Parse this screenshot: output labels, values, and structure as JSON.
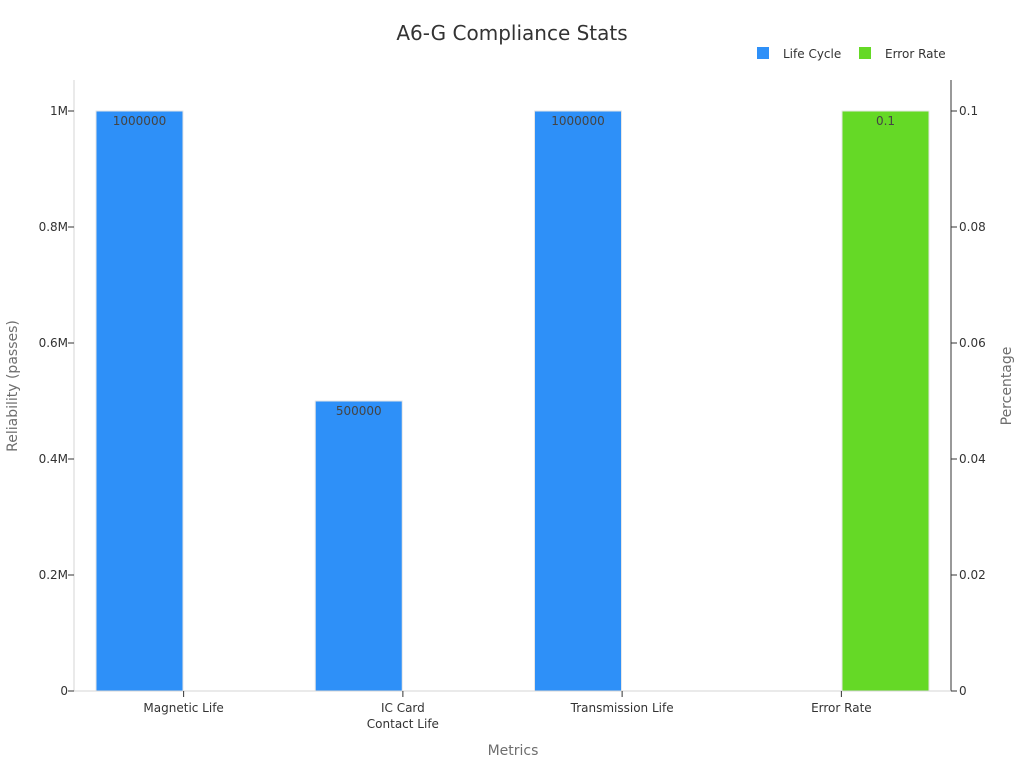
{
  "chart_data": {
    "type": "bar",
    "title": "A6-G Compliance Stats",
    "xlabel": "Metrics",
    "ylabel": "Reliability (passes)",
    "y2label": "Percentage",
    "categories": [
      [
        "Magnetic Life"
      ],
      [
        "IC Card",
        "Contact Life"
      ],
      [
        "Transmission Life"
      ],
      [
        "Error Rate"
      ]
    ],
    "series": [
      {
        "name": "Life Cycle",
        "axis": "left",
        "color": "#2e90f8",
        "values": [
          1000000,
          500000,
          1000000,
          null
        ],
        "labels": [
          "1000000",
          "500000",
          "1000000",
          null
        ]
      },
      {
        "name": "Error Rate",
        "axis": "right",
        "color": "#65d926",
        "values": [
          null,
          null,
          null,
          0.1
        ],
        "labels": [
          null,
          null,
          null,
          "0.1"
        ]
      }
    ],
    "ylim": [
      0,
      1000000
    ],
    "y2lim": [
      0,
      0.1
    ],
    "yticks": [
      {
        "value": 0,
        "label": "0"
      },
      {
        "value": 200000,
        "label": "0.2M"
      },
      {
        "value": 400000,
        "label": "0.4M"
      },
      {
        "value": 600000,
        "label": "0.6M"
      },
      {
        "value": 800000,
        "label": "0.8M"
      },
      {
        "value": 1000000,
        "label": "1M"
      }
    ],
    "y2ticks": [
      {
        "value": 0,
        "label": "0"
      },
      {
        "value": 0.02,
        "label": "0.02"
      },
      {
        "value": 0.04,
        "label": "0.04"
      },
      {
        "value": 0.06,
        "label": "0.06"
      },
      {
        "value": 0.08,
        "label": "0.08"
      },
      {
        "value": 0.1,
        "label": "0.1"
      }
    ],
    "grid": false,
    "legend_position": "top-right"
  }
}
